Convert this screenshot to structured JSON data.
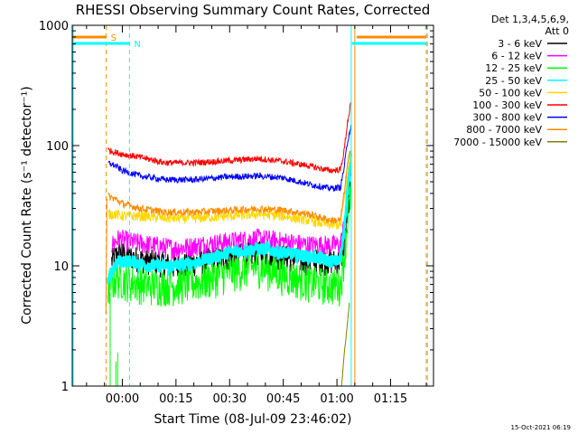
{
  "chart_data": {
    "type": "line",
    "title": "RHESSI Observing Summary Count Rates, Corrected",
    "xlabel": "Start Time (08-Jul-09 23:46:02)",
    "ylabel": "Corrected Count Rate (s⁻¹ detector⁻¹)",
    "y_scale": "log",
    "ylim": [
      1,
      1000
    ],
    "xlim_minutes": [
      -14,
      87
    ],
    "x_ticks": [
      {
        "min": 0,
        "label": "00:00"
      },
      {
        "min": 15,
        "label": "00:15"
      },
      {
        "min": 30,
        "label": "00:30"
      },
      {
        "min": 45,
        "label": "00:45"
      },
      {
        "min": 60,
        "label": "01:00"
      },
      {
        "min": 75,
        "label": "01:15"
      }
    ],
    "y_ticks": [
      {
        "value": 1,
        "label": "1"
      },
      {
        "value": 10,
        "label": "10"
      },
      {
        "value": 100,
        "label": "100"
      },
      {
        "value": 1000,
        "label": "1000"
      }
    ],
    "legend": {
      "header": [
        "Det 1,3,4,5,6,9,",
        "Att 0"
      ],
      "placement": "right"
    },
    "series": [
      {
        "name": "3 - 6 keV",
        "color": "#000000",
        "x": [
          -3,
          -1,
          2,
          8,
          15,
          22,
          30,
          38,
          45,
          52,
          58,
          61,
          62,
          63,
          64
        ],
        "y": [
          11,
          13,
          12,
          11,
          10,
          11,
          12,
          13,
          12,
          11,
          11,
          11,
          15,
          30,
          50
        ]
      },
      {
        "name": "6 - 12 keV",
        "color": "#ff00ff",
        "x": [
          -3,
          -1,
          2,
          8,
          15,
          22,
          30,
          38,
          45,
          52,
          58,
          61,
          62,
          63,
          64
        ],
        "y": [
          15,
          17,
          16,
          15,
          14,
          15,
          16,
          17,
          16,
          15,
          15,
          15,
          22,
          40,
          70
        ]
      },
      {
        "name": "12 - 25 keV",
        "color": "#00ff00",
        "x": [
          -4,
          -3,
          -1,
          2,
          8,
          15,
          22,
          30,
          38,
          45,
          52,
          58,
          61,
          62,
          63,
          64
        ],
        "y": [
          6.5,
          7.5,
          8,
          7.5,
          7,
          7,
          7.5,
          9,
          10,
          8.5,
          7.5,
          7,
          7,
          12,
          25,
          45
        ]
      },
      {
        "name": "25 - 50 keV",
        "color": "#00ffff",
        "x": [
          -4,
          -3,
          -1,
          2,
          8,
          15,
          22,
          30,
          38,
          45,
          52,
          58,
          61,
          62,
          63,
          64
        ],
        "y": [
          7,
          9,
          11,
          11,
          10,
          10,
          11,
          13,
          14,
          13,
          12,
          11,
          11,
          20,
          45,
          85
        ]
      },
      {
        "name": "50 - 100 keV",
        "color": "#ffd700",
        "x": [
          -4,
          -2,
          0,
          5,
          12,
          20,
          30,
          38,
          45,
          52,
          58,
          61,
          62,
          63,
          64
        ],
        "y": [
          27,
          27,
          26,
          26,
          25,
          25,
          26,
          27,
          26,
          24,
          22,
          22,
          35,
          60,
          90
        ]
      },
      {
        "name": "100 - 300 keV",
        "color": "#ff0000",
        "x": [
          -4,
          -2,
          0,
          5,
          12,
          20,
          30,
          38,
          45,
          52,
          58,
          61,
          62,
          63,
          64
        ],
        "y": [
          92,
          88,
          85,
          80,
          72,
          72,
          75,
          78,
          74,
          68,
          62,
          63,
          90,
          160,
          230
        ]
      },
      {
        "name": "300 - 800 keV",
        "color": "#0000ff",
        "x": [
          -4,
          -2,
          0,
          5,
          12,
          20,
          30,
          38,
          45,
          52,
          58,
          61,
          62,
          63,
          64
        ],
        "y": [
          72,
          68,
          62,
          56,
          52,
          52,
          55,
          56,
          54,
          48,
          44,
          45,
          65,
          110,
          150
        ]
      },
      {
        "name": "800 - 7000 keV",
        "color": "#ff8c00",
        "x": [
          -4,
          -2,
          0,
          5,
          12,
          20,
          30,
          38,
          45,
          52,
          58,
          61,
          62,
          63,
          64
        ],
        "y": [
          38,
          36,
          33,
          30,
          28,
          28,
          29,
          30,
          29,
          27,
          24,
          24,
          40,
          70,
          100
        ]
      },
      {
        "name": "7000 - 15000 keV",
        "color": "#808000",
        "x": [
          61.3,
          62,
          62.8,
          63.5
        ],
        "y": [
          1,
          1.8,
          3,
          5
        ]
      }
    ],
    "annotations": [
      {
        "label": "S",
        "color": "#ff8c00",
        "x_start": -14,
        "x_end": -4.5
      },
      {
        "label": "N",
        "color": "#00ffff",
        "x_start": -14,
        "x_end": 2
      }
    ],
    "vertical_markers": [
      {
        "x": -4.5,
        "color": "#ff8c00",
        "style": "dashed"
      },
      {
        "x": 2,
        "color": "#00ffff",
        "style": "dashed"
      },
      {
        "x": 64,
        "color": "#00ffff",
        "style": "solid"
      },
      {
        "x": 65,
        "color": "#ff8c00",
        "style": "solid"
      },
      {
        "x": 85,
        "color": "#ff8c00",
        "style": "dashed"
      },
      {
        "x": 85.3,
        "color": "#00ffff",
        "style": "dashed"
      }
    ],
    "footer": "15-Oct-2021 06:19"
  }
}
